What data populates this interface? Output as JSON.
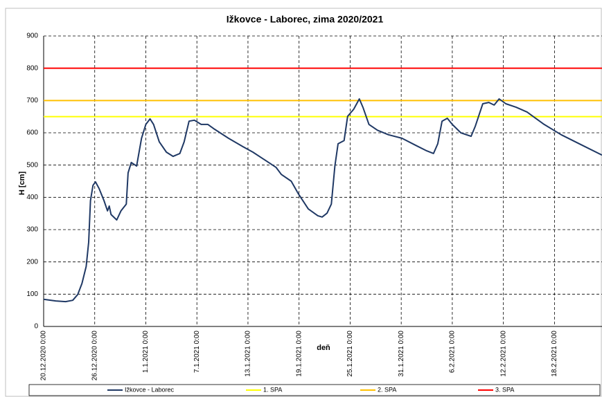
{
  "chart_data": {
    "type": "line",
    "title": "Ižkovce - Laborec, zima 2020/2021",
    "x_label": "deň",
    "y_label": "H [cm]",
    "x": [
      "2020-12-20 00:00",
      "2020-12-21 10:00",
      "2020-12-22 14:00",
      "2020-12-23 10:00",
      "2020-12-24 00:00",
      "2020-12-24 12:00",
      "2020-12-25 00:00",
      "2020-12-25 07:00",
      "2020-12-25 12:00",
      "2020-12-25 19:00",
      "2020-12-26 02:00",
      "2020-12-26 12:00",
      "2020-12-27 02:00",
      "2020-12-27 12:00",
      "2020-12-27 17:00",
      "2020-12-27 22:00",
      "2020-12-28 14:00",
      "2020-12-29 02:00",
      "2020-12-29 17:00",
      "2020-12-29 22:00",
      "2020-12-30 07:00",
      "2020-12-30 22:00",
      "2020-12-31 12:00",
      "2021-01-01 00:00",
      "2021-01-01 12:00",
      "2021-01-01 22:00",
      "2021-01-02 14:00",
      "2021-01-03 10:00",
      "2021-01-04 05:00",
      "2021-01-05 00:00",
      "2021-01-05 12:00",
      "2021-01-06 02:00",
      "2021-01-06 17:00",
      "2021-01-07 12:00",
      "2021-01-08 07:00",
      "2021-01-09 02:00",
      "2021-01-10 17:00",
      "2021-01-12 10:00",
      "2021-01-13 14:00",
      "2021-01-14 19:00",
      "2021-01-16 07:00",
      "2021-01-16 22:00",
      "2021-01-18 02:00",
      "2021-01-18 22:00",
      "2021-01-20 02:00",
      "2021-01-21 05:00",
      "2021-01-21 17:00",
      "2021-01-22 07:00",
      "2021-01-22 19:00",
      "2021-01-23 05:00",
      "2021-01-23 14:00",
      "2021-01-24 07:00",
      "2021-01-24 17:00",
      "2021-01-25 10:00",
      "2021-01-26 02:00",
      "2021-01-26 12:00",
      "2021-01-27 05:00",
      "2021-01-28 05:00",
      "2021-01-29 12:00",
      "2021-01-31 02:00",
      "2021-02-01 17:00",
      "2021-02-03 00:00",
      "2021-02-03 19:00",
      "2021-02-04 07:00",
      "2021-02-04 19:00",
      "2021-02-05 10:00",
      "2021-02-06 00:00",
      "2021-02-07 00:00",
      "2021-02-08 05:00",
      "2021-02-08 17:00",
      "2021-02-09 14:00",
      "2021-02-10 07:00",
      "2021-02-10 22:00",
      "2021-02-11 12:00",
      "2021-02-12 07:00",
      "2021-02-13 12:00",
      "2021-02-14 19:00",
      "2021-02-16 19:00",
      "2021-02-18 19:00",
      "2021-02-21 07:00",
      "2021-02-23 14:00"
    ],
    "series": [
      {
        "name": "Ižkovce - Laborec",
        "color": "#1f3864",
        "values": [
          84,
          79,
          77,
          81,
          99,
          133,
          186,
          261,
          390,
          437,
          448,
          428,
          390,
          358,
          373,
          347,
          330,
          358,
          379,
          476,
          508,
          497,
          583,
          626,
          643,
          626,
          572,
          540,
          527,
          536,
          572,
          636,
          639,
          626,
          626,
          611,
          583,
          557,
          540,
          519,
          493,
          471,
          450,
          411,
          364,
          343,
          339,
          351,
          379,
          497,
          566,
          576,
          651,
          673,
          705,
          679,
          626,
          608,
          594,
          583,
          561,
          544,
          536,
          566,
          636,
          645,
          626,
          600,
          589,
          621,
          690,
          694,
          686,
          705,
          690,
          679,
          664,
          626,
          594,
          561,
          531
        ]
      }
    ],
    "reference_lines": [
      {
        "name": "1. SPA",
        "color": "#ffff00",
        "value": 650
      },
      {
        "name": "2. SPA",
        "color": "#ffc000",
        "value": 700
      },
      {
        "name": "3. SPA",
        "color": "#ff0000",
        "value": 800
      }
    ],
    "xlim": [
      "2020-12-20 00:00",
      "2021-02-23 14:00"
    ],
    "xticks": [
      {
        "value": "2020-12-20 00:00",
        "label": "20.12.2020 0:00"
      },
      {
        "value": "2020-12-26 00:00",
        "label": "26.12.2020 0:00"
      },
      {
        "value": "2021-01-01 00:00",
        "label": "1.1.2021 0:00"
      },
      {
        "value": "2021-01-07 00:00",
        "label": "7.1.2021 0:00"
      },
      {
        "value": "2021-01-13 00:00",
        "label": "13.1.2021 0:00"
      },
      {
        "value": "2021-01-19 00:00",
        "label": "19.1.2021 0:00"
      },
      {
        "value": "2021-01-25 00:00",
        "label": "25.1.2021 0:00"
      },
      {
        "value": "2021-01-31 00:00",
        "label": "31.1.2021 0:00"
      },
      {
        "value": "2021-02-06 00:00",
        "label": "6.2.2021 0:00"
      },
      {
        "value": "2021-02-12 00:00",
        "label": "12.2.2021 0:00"
      },
      {
        "value": "2021-02-18 00:00",
        "label": "18.2.2021 0:00"
      }
    ],
    "ylim": [
      0,
      900
    ],
    "yticks": [
      0,
      100,
      200,
      300,
      400,
      500,
      600,
      700,
      800,
      900
    ],
    "grid": true,
    "legend": "bottom"
  }
}
